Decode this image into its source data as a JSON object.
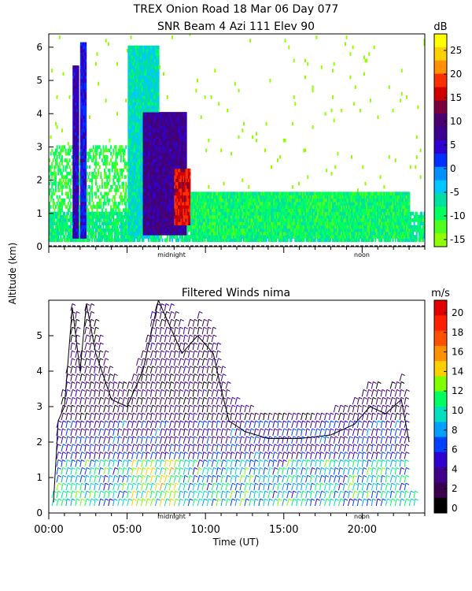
{
  "header": {
    "title_line1": "TREX Onion Road  18 Mar 06 Day 077",
    "title_line2": "SNR Beam 4 Azi 111 Elev 90"
  },
  "shared": {
    "ylabel": "Altitude (km)",
    "xlabel": "Time (UT)",
    "midnight_label": "midnight",
    "noon_label": "noon"
  },
  "chart_data": [
    {
      "type": "heatmap",
      "title": "SNR Beam 4 Azi 111 Elev 90",
      "units": "dB",
      "ylabel": "Altitude (km)",
      "ylim": [
        0,
        6.4
      ],
      "yticks": [
        0,
        1,
        2,
        3,
        4,
        5,
        6
      ],
      "xlim": [
        0,
        24
      ],
      "colorbar": {
        "ticks": [
          25,
          20,
          15,
          10,
          5,
          0,
          -5,
          -10,
          -15
        ],
        "colors": [
          "#ffff00",
          "#ffd000",
          "#ff9000",
          "#ff3000",
          "#d00000",
          "#7a003c",
          "#4a0070",
          "#3a0090",
          "#3000d0",
          "#0030ff",
          "#0090ff",
          "#00c8ff",
          "#00e0a0",
          "#00ff60",
          "#50ff20",
          "#90ff00"
        ]
      },
      "fields": [
        {
          "t": [
            1.5,
            1.9
          ],
          "z": [
            0.2,
            5.4
          ],
          "snr": 6
        },
        {
          "t": [
            2.0,
            2.4
          ],
          "z": [
            0.2,
            6.1
          ],
          "snr": 4
        },
        {
          "t": [
            5.0,
            7.0
          ],
          "z": [
            0.2,
            6.0
          ],
          "snr": -5
        },
        {
          "t": [
            6.0,
            8.8
          ],
          "z": [
            0.3,
            4.0
          ],
          "snr": 8
        },
        {
          "t": [
            8.0,
            9.0
          ],
          "z": [
            0.6,
            2.3
          ],
          "snr": 16
        },
        {
          "t": [
            9.0,
            23.0
          ],
          "z": [
            0.2,
            1.6
          ],
          "snr": -8
        }
      ]
    },
    {
      "type": "scatter",
      "title": "Filtered Winds nima",
      "units": "m/s",
      "xlabel": "Time (UT)",
      "ylabel": "Altitude (km)",
      "xlim": [
        0,
        24
      ],
      "xticks": [
        "00:00",
        "05:00",
        "10:00",
        "15:00",
        "20:00"
      ],
      "xtick_values": [
        0,
        5,
        10,
        15,
        20
      ],
      "ylim": [
        0,
        6.0
      ],
      "yticks": [
        0,
        1,
        2,
        3,
        4,
        5
      ],
      "colorbar": {
        "ticks": [
          0,
          2,
          4,
          6,
          8,
          10,
          12,
          14,
          16,
          18,
          20
        ],
        "colors": [
          "#000000",
          "#3a0050",
          "#40008a",
          "#3000d0",
          "#0040ff",
          "#00a0ff",
          "#00e0c0",
          "#00ff60",
          "#80ff00",
          "#ffd000",
          "#ff9000",
          "#ff5000",
          "#ff2000",
          "#e00000"
        ]
      },
      "outline_top_km": [
        {
          "t": 0.3,
          "z": 0.3
        },
        {
          "t": 0.6,
          "z": 2.6
        },
        {
          "t": 1.0,
          "z": 3.0
        },
        {
          "t": 1.5,
          "z": 5.8
        },
        {
          "t": 2.0,
          "z": 4.0
        },
        {
          "t": 2.4,
          "z": 5.9
        },
        {
          "t": 3.0,
          "z": 4.5
        },
        {
          "t": 4.0,
          "z": 3.2
        },
        {
          "t": 5.0,
          "z": 3.0
        },
        {
          "t": 6.0,
          "z": 4.0
        },
        {
          "t": 7.0,
          "z": 6.0
        },
        {
          "t": 8.5,
          "z": 4.5
        },
        {
          "t": 9.5,
          "z": 5.0
        },
        {
          "t": 10.5,
          "z": 4.5
        },
        {
          "t": 11.0,
          "z": 3.5
        },
        {
          "t": 11.5,
          "z": 2.6
        },
        {
          "t": 12.5,
          "z": 2.3
        },
        {
          "t": 14.0,
          "z": 2.1
        },
        {
          "t": 16.0,
          "z": 2.1
        },
        {
          "t": 18.0,
          "z": 2.2
        },
        {
          "t": 19.5,
          "z": 2.5
        },
        {
          "t": 20.5,
          "z": 3.0
        },
        {
          "t": 21.5,
          "z": 2.8
        },
        {
          "t": 22.5,
          "z": 3.2
        },
        {
          "t": 23.0,
          "z": 2.0
        }
      ]
    }
  ]
}
